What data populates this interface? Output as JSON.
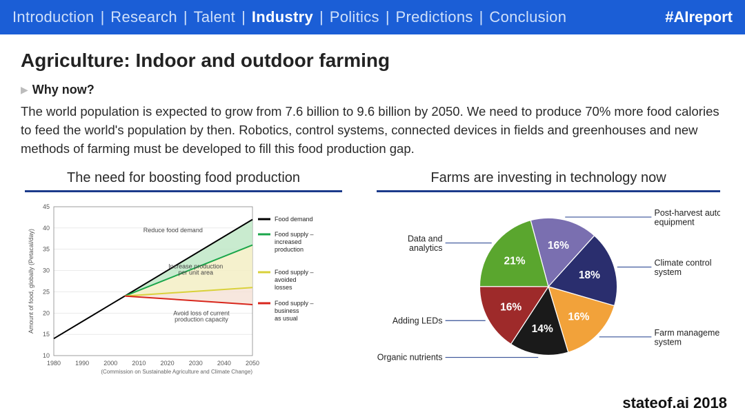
{
  "topbar": {
    "items": [
      "Introduction",
      "Research",
      "Talent",
      "Industry",
      "Politics",
      "Predictions",
      "Conclusion"
    ],
    "active_index": 3,
    "separator": "|",
    "hashtag": "#AIreport",
    "bg_color": "#1b5ed6",
    "inactive_color": "#cfe0fa",
    "active_color": "#ffffff"
  },
  "title": "Agriculture: Indoor and outdoor farming",
  "subheading": "Why now?",
  "body": "The world population is expected to grow from 7.6 billion to 9.6 billion by 2050. We need to produce 70% more food calories to feed the world's population by then. Robotics, control systems, connected devices in fields and greenhouses and new methods of farming must be developed to fill this food production gap.",
  "left_chart": {
    "type": "line-area",
    "title": "The need for boosting food production",
    "underline_color": "#1b3a8a",
    "x": {
      "min": 1980,
      "max": 2050,
      "ticks": [
        1980,
        1990,
        2000,
        2010,
        2020,
        2030,
        2040,
        2050
      ]
    },
    "y": {
      "min": 10,
      "max": 45,
      "ticks": [
        10,
        15,
        20,
        25,
        30,
        35,
        40,
        45
      ],
      "label": "Amount of food, globally (Petacal/day)"
    },
    "series": {
      "demand": {
        "color": "#000000",
        "points": [
          [
            1980,
            14
          ],
          [
            1990,
            18
          ],
          [
            2000,
            22
          ],
          [
            2005,
            24
          ],
          [
            2050,
            42
          ]
        ],
        "legend": "Food demand"
      },
      "supply_up": {
        "color": "#1aa64a",
        "points": [
          [
            2005,
            24
          ],
          [
            2050,
            36
          ]
        ],
        "legend": "Food supply – increased production"
      },
      "supply_av": {
        "color": "#d9d13a",
        "points": [
          [
            2005,
            24
          ],
          [
            2050,
            26
          ]
        ],
        "legend": "Food supply – avoided losses"
      },
      "supply_bu": {
        "color": "#d8261c",
        "points": [
          [
            2005,
            24
          ],
          [
            2050,
            22
          ]
        ],
        "legend": "Food supply – business as usual"
      }
    },
    "fills": {
      "demand_gap": {
        "color": "#bfe7c7",
        "opacity": 0.85
      },
      "avoided": {
        "color": "#f3efc4",
        "opacity": 0.85
      },
      "bau_gap": {
        "color": "#f6e3d8",
        "opacity": 0.85
      }
    },
    "annotations": {
      "reduce": "Reduce food demand",
      "increase": "Increase production per unit area",
      "avoid": "Avoid loss of current production capacity"
    },
    "credit": "(Commission on Sustainable Agriculture and Climate Change)",
    "grid_color": "#dddddd",
    "bg": "#ffffff"
  },
  "right_chart": {
    "type": "pie",
    "title": "Farms are investing in technology now",
    "underline_color": "#1b3a8a",
    "slices": [
      {
        "label": "Post-harvest automation equipment",
        "pct": 16,
        "color": "#7a6fb0"
      },
      {
        "label": "Climate control system",
        "pct": 18,
        "color": "#2a2e6e"
      },
      {
        "label": "Farm management system",
        "pct": 16,
        "color": "#f2a23a"
      },
      {
        "label": "Organic nutrients",
        "pct": 14,
        "color": "#1a1a1a"
      },
      {
        "label": "Adding LEDs",
        "pct": 16,
        "color": "#9e2a2a"
      },
      {
        "label": "Data and analytics",
        "pct": 21,
        "color": "#5aa62e"
      }
    ],
    "label_line_color": "#1b3a8a",
    "pct_text_color": "#ffffff"
  },
  "footer": "stateof.ai 2018"
}
